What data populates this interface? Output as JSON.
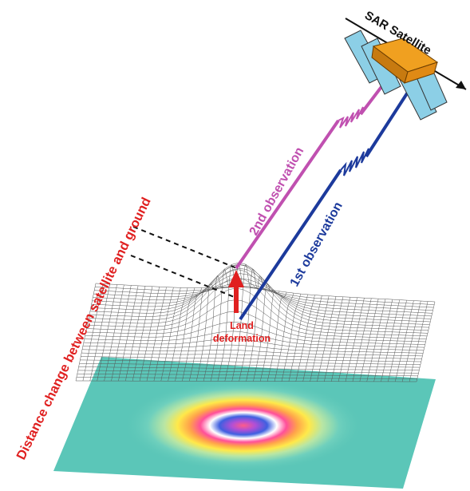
{
  "labels": {
    "satellite": "SAR Satellite",
    "second_obs": "2nd observation",
    "first_obs": "1st observation",
    "distance_change": "Distance change between satellite and ground",
    "land_line1": "Land",
    "land_line2": "deformation"
  },
  "colors": {
    "second_obs": "#c050b0",
    "first_obs": "#1c3a9c",
    "distance_text": "#e02020",
    "land_text": "#e02020",
    "arrow": "#e02020",
    "panel_fill": "#8ccfe6",
    "satellite_body": "#f0a020",
    "ground_base": "#5bc6b8"
  },
  "icons": {
    "satellite": "satellite-icon",
    "deformation_arrow": "up-arrow-icon"
  }
}
